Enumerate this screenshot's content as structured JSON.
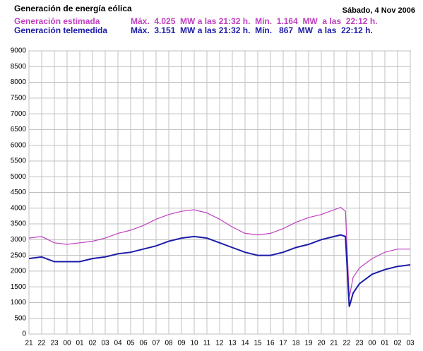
{
  "chart_data": {
    "type": "line",
    "title": "Generación de energía eólica",
    "date": "Sábado, 4 Nov 2006",
    "x": [
      0,
      1,
      2,
      3,
      4,
      5,
      6,
      7,
      8,
      9,
      10,
      11,
      12,
      13,
      14,
      15,
      16,
      17,
      18,
      19,
      20,
      21,
      22,
      23,
      24,
      24.53,
      24.9,
      25.2,
      25.5,
      26,
      27,
      28,
      29,
      30
    ],
    "series": [
      {
        "name": "Generación estimada",
        "color": "#c040c0",
        "stats": "Máx.  4.025  MW a las 21:32 h.  Mín.  1.164  MW  a las  22:12 h.",
        "values": [
          3050,
          3100,
          2900,
          2850,
          2900,
          2950,
          3050,
          3200,
          3300,
          3450,
          3650,
          3800,
          3900,
          3950,
          3850,
          3650,
          3400,
          3200,
          3150,
          3200,
          3350,
          3550,
          3700,
          3800,
          3950,
          4025,
          3900,
          1164,
          1800,
          2100,
          2400,
          2600,
          2700,
          2700
        ]
      },
      {
        "name": "Generación telemedida",
        "color": "#1c1ca8",
        "stats": "Máx.  3.151  MW a las 21:32 h.  Mín.   867  MW  a las  22:12 h.",
        "values": [
          2400,
          2450,
          2300,
          2300,
          2300,
          2400,
          2450,
          2550,
          2600,
          2700,
          2800,
          2950,
          3050,
          3100,
          3050,
          2900,
          2750,
          2600,
          2500,
          2500,
          2600,
          2750,
          2850,
          3000,
          3100,
          3151,
          3100,
          867,
          1300,
          1600,
          1900,
          2050,
          2150,
          2200
        ]
      }
    ],
    "xlim": [
      0,
      30
    ],
    "xticks": [
      {
        "value": 0,
        "label": "21"
      },
      {
        "value": 1,
        "label": "22"
      },
      {
        "value": 2,
        "label": "23"
      },
      {
        "value": 3,
        "label": "00"
      },
      {
        "value": 4,
        "label": "01"
      },
      {
        "value": 5,
        "label": "02"
      },
      {
        "value": 6,
        "label": "03"
      },
      {
        "value": 7,
        "label": "04"
      },
      {
        "value": 8,
        "label": "05"
      },
      {
        "value": 9,
        "label": "06"
      },
      {
        "value": 10,
        "label": "07"
      },
      {
        "value": 11,
        "label": "08"
      },
      {
        "value": 12,
        "label": "09"
      },
      {
        "value": 13,
        "label": "10"
      },
      {
        "value": 14,
        "label": "11"
      },
      {
        "value": 15,
        "label": "12"
      },
      {
        "value": 16,
        "label": "13"
      },
      {
        "value": 17,
        "label": "14"
      },
      {
        "value": 18,
        "label": "15"
      },
      {
        "value": 19,
        "label": "16"
      },
      {
        "value": 20,
        "label": "17"
      },
      {
        "value": 21,
        "label": "18"
      },
      {
        "value": 22,
        "label": "19"
      },
      {
        "value": 23,
        "label": "20"
      },
      {
        "value": 24,
        "label": "21"
      },
      {
        "value": 25,
        "label": "22"
      },
      {
        "value": 26,
        "label": "23"
      },
      {
        "value": 27,
        "label": "00"
      },
      {
        "value": 28,
        "label": "01"
      },
      {
        "value": 29,
        "label": "02"
      },
      {
        "value": 30,
        "label": "03"
      }
    ],
    "ylim": [
      0,
      9000
    ],
    "yticks": [
      0,
      500,
      1000,
      1500,
      2000,
      2500,
      3000,
      3500,
      4000,
      4500,
      5000,
      5500,
      6000,
      6500,
      7000,
      7500,
      8000,
      8500,
      9000
    ],
    "grid": true
  }
}
